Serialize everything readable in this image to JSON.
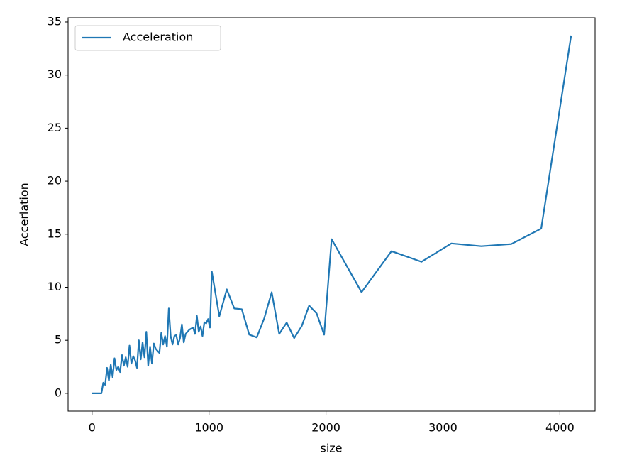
{
  "chart_data": {
    "type": "line",
    "xlabel": "size",
    "ylabel": "Accerlation",
    "x": [
      0,
      16,
      32,
      48,
      64,
      80,
      96,
      112,
      128,
      144,
      160,
      176,
      192,
      208,
      224,
      240,
      256,
      272,
      288,
      304,
      320,
      336,
      352,
      368,
      384,
      400,
      416,
      432,
      448,
      464,
      480,
      496,
      512,
      528,
      544,
      560,
      576,
      592,
      608,
      624,
      640,
      656,
      672,
      688,
      704,
      720,
      736,
      752,
      768,
      784,
      800,
      832,
      864,
      880,
      896,
      912,
      928,
      944,
      960,
      976,
      992,
      1008,
      1024,
      1088,
      1152,
      1216,
      1280,
      1344,
      1408,
      1472,
      1536,
      1600,
      1664,
      1728,
      1792,
      1856,
      1920,
      1984,
      2048,
      2304,
      2560,
      2816,
      3072,
      3328,
      3584,
      3840,
      4096
    ],
    "series": [
      {
        "name": "Acceleration",
        "color": "#1f77b4",
        "values": [
          0,
          0,
          0,
          0,
          0,
          0,
          1,
          0.8,
          2.4,
          1.2,
          2.7,
          1.5,
          3.3,
          2.2,
          2.5,
          2.0,
          3.6,
          2.6,
          3.4,
          2.5,
          4.5,
          2.8,
          3.5,
          3.1,
          2.4,
          5.0,
          3.2,
          4.8,
          3.4,
          5.8,
          2.6,
          4.4,
          2.8,
          4.7,
          4.2,
          4.0,
          3.8,
          5.7,
          4.6,
          5.4,
          4.4,
          8.0,
          5.4,
          4.6,
          5.4,
          5.5,
          4.6,
          5.2,
          6.5,
          4.8,
          5.6,
          6.0,
          6.2,
          5.6,
          7.3,
          5.8,
          6.3,
          5.4,
          6.7,
          6.6,
          7.0,
          6.2,
          11.47,
          7.27,
          9.8,
          8.0,
          7.93,
          5.53,
          5.27,
          7.07,
          9.53,
          5.6,
          6.67,
          5.2,
          6.33,
          8.27,
          7.53,
          5.53,
          14.53,
          9.53,
          13.4,
          12.4,
          14.13,
          13.87,
          14.07,
          15.53,
          33.73
        ]
      }
    ],
    "xlim": [
      -204.8,
      4300.8
    ],
    "xticks": [
      0,
      1000,
      2000,
      3000,
      4000
    ],
    "ylim": [
      -1.68,
      35.4
    ],
    "yticks": [
      0,
      5,
      10,
      15,
      20,
      25,
      30,
      35
    ],
    "legend": "upper left"
  }
}
